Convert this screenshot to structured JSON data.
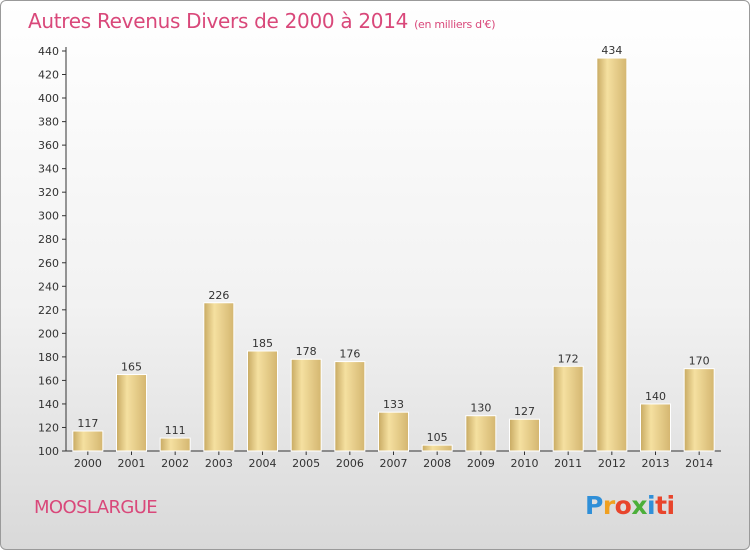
{
  "header": {
    "title": "Autres Revenus Divers de 2000 à 2014",
    "unit": "(en milliers d'€)"
  },
  "footer": {
    "place": "MOOSLARGUE",
    "brand_letters": [
      "P",
      "r",
      "o",
      "x",
      "i",
      "ti"
    ]
  },
  "colors": {
    "title": "#d9487a",
    "bar_light": "#f5e0a0",
    "bar_dark": "#c8aa62",
    "axis": "#333333"
  },
  "chart_data": {
    "type": "bar",
    "categories": [
      "2000",
      "2001",
      "2002",
      "2003",
      "2004",
      "2005",
      "2006",
      "2007",
      "2008",
      "2009",
      "2010",
      "2011",
      "2012",
      "2013",
      "2014"
    ],
    "values": [
      117,
      165,
      111,
      226,
      185,
      178,
      176,
      133,
      105,
      130,
      127,
      172,
      434,
      140,
      170
    ],
    "ylim": [
      100,
      440
    ],
    "yticks": [
      100,
      120,
      140,
      160,
      180,
      200,
      220,
      240,
      260,
      280,
      300,
      320,
      340,
      360,
      380,
      400,
      420,
      440
    ],
    "grid": false,
    "title": "Autres Revenus Divers de 2000 à 2014",
    "ylabel": "",
    "xlabel": ""
  }
}
